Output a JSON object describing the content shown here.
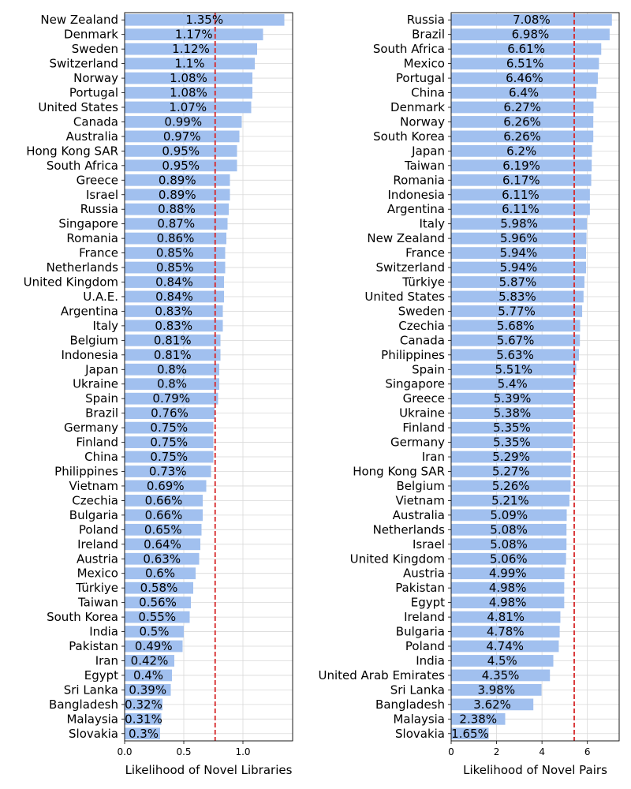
{
  "chart_data": [
    {
      "type": "bar",
      "orientation": "horizontal",
      "xlabel": "Likelihood of Novel Libraries",
      "xlim": [
        0,
        1.42
      ],
      "xticks": [
        "0.0",
        "0.5",
        "1.0"
      ],
      "reference_line": 0.765,
      "grid": true,
      "categories": [
        "New Zealand",
        "Denmark",
        "Sweden",
        "Switzerland",
        "Norway",
        "Portugal",
        "United States",
        "Canada",
        "Australia",
        "Hong Kong SAR",
        "South Africa",
        "Greece",
        "Israel",
        "Russia",
        "Singapore",
        "Romania",
        "France",
        "Netherlands",
        "United Kingdom",
        "U.A.E.",
        "Argentina",
        "Italy",
        "Belgium",
        "Indonesia",
        "Japan",
        "Ukraine",
        "Spain",
        "Brazil",
        "Germany",
        "Finland",
        "China",
        "Philippines",
        "Vietnam",
        "Czechia",
        "Bulgaria",
        "Poland",
        "Ireland",
        "Austria",
        "Mexico",
        "Türkiye",
        "Taiwan",
        "South Korea",
        "India",
        "Pakistan",
        "Iran",
        "Egypt",
        "Sri Lanka",
        "Bangladesh",
        "Malaysia",
        "Slovakia"
      ],
      "values": [
        1.35,
        1.17,
        1.12,
        1.1,
        1.08,
        1.08,
        1.07,
        0.99,
        0.97,
        0.95,
        0.95,
        0.89,
        0.89,
        0.88,
        0.87,
        0.86,
        0.85,
        0.85,
        0.84,
        0.84,
        0.83,
        0.83,
        0.81,
        0.81,
        0.8,
        0.8,
        0.79,
        0.76,
        0.75,
        0.75,
        0.75,
        0.73,
        0.69,
        0.66,
        0.66,
        0.65,
        0.64,
        0.63,
        0.6,
        0.58,
        0.56,
        0.55,
        0.5,
        0.49,
        0.42,
        0.4,
        0.39,
        0.32,
        0.31,
        0.3
      ],
      "labels": [
        "1.35%",
        "1.17%",
        "1.12%",
        "1.1%",
        "1.08%",
        "1.08%",
        "1.07%",
        "0.99%",
        "0.97%",
        "0.95%",
        "0.95%",
        "0.89%",
        "0.89%",
        "0.88%",
        "0.87%",
        "0.86%",
        "0.85%",
        "0.85%",
        "0.84%",
        "0.84%",
        "0.83%",
        "0.83%",
        "0.81%",
        "0.81%",
        "0.8%",
        "0.8%",
        "0.79%",
        "0.76%",
        "0.75%",
        "0.75%",
        "0.75%",
        "0.73%",
        "0.69%",
        "0.66%",
        "0.66%",
        "0.65%",
        "0.64%",
        "0.63%",
        "0.6%",
        "0.58%",
        "0.56%",
        "0.55%",
        "0.5%",
        "0.49%",
        "0.42%",
        "0.4%",
        "0.39%",
        "0.32%",
        "0.31%",
        "0.3%"
      ]
    },
    {
      "type": "bar",
      "orientation": "horizontal",
      "xlabel": "Likelihood of Novel Pairs",
      "xlim": [
        0,
        7.4
      ],
      "xticks": [
        "0",
        "2",
        "4",
        "6"
      ],
      "reference_line": 5.42,
      "grid": true,
      "categories": [
        "Russia",
        "Brazil",
        "South Africa",
        "Mexico",
        "Portugal",
        "China",
        "Denmark",
        "Norway",
        "South Korea",
        "Japan",
        "Taiwan",
        "Romania",
        "Indonesia",
        "Argentina",
        "Italy",
        "New Zealand",
        "France",
        "Switzerland",
        "Türkiye",
        "United States",
        "Sweden",
        "Czechia",
        "Canada",
        "Philippines",
        "Spain",
        "Singapore",
        "Greece",
        "Ukraine",
        "Finland",
        "Germany",
        "Iran",
        "Hong Kong SAR",
        "Belgium",
        "Vietnam",
        "Australia",
        "Netherlands",
        "Israel",
        "United Kingdom",
        "Austria",
        "Pakistan",
        "Egypt",
        "Ireland",
        "Bulgaria",
        "Poland",
        "India",
        "United Arab Emirates",
        "Sri Lanka",
        "Bangladesh",
        "Malaysia",
        "Slovakia"
      ],
      "values": [
        7.08,
        6.98,
        6.61,
        6.51,
        6.46,
        6.4,
        6.27,
        6.26,
        6.26,
        6.2,
        6.19,
        6.17,
        6.11,
        6.11,
        5.98,
        5.96,
        5.94,
        5.94,
        5.87,
        5.83,
        5.77,
        5.68,
        5.67,
        5.63,
        5.51,
        5.4,
        5.39,
        5.38,
        5.35,
        5.35,
        5.29,
        5.27,
        5.26,
        5.21,
        5.09,
        5.08,
        5.08,
        5.06,
        4.99,
        4.98,
        4.98,
        4.81,
        4.78,
        4.74,
        4.5,
        4.35,
        3.98,
        3.62,
        2.38,
        1.65
      ],
      "labels": [
        "7.08%",
        "6.98%",
        "6.61%",
        "6.51%",
        "6.46%",
        "6.4%",
        "6.27%",
        "6.26%",
        "6.26%",
        "6.2%",
        "6.19%",
        "6.17%",
        "6.11%",
        "6.11%",
        "5.98%",
        "5.96%",
        "5.94%",
        "5.94%",
        "5.87%",
        "5.83%",
        "5.77%",
        "5.68%",
        "5.67%",
        "5.63%",
        "5.51%",
        "5.4%",
        "5.39%",
        "5.38%",
        "5.35%",
        "5.35%",
        "5.29%",
        "5.27%",
        "5.26%",
        "5.21%",
        "5.09%",
        "5.08%",
        "5.08%",
        "5.06%",
        "4.99%",
        "4.98%",
        "4.98%",
        "4.81%",
        "4.78%",
        "4.74%",
        "4.5%",
        "4.35%",
        "3.98%",
        "3.62%",
        "2.38%",
        "1.65%"
      ]
    }
  ]
}
